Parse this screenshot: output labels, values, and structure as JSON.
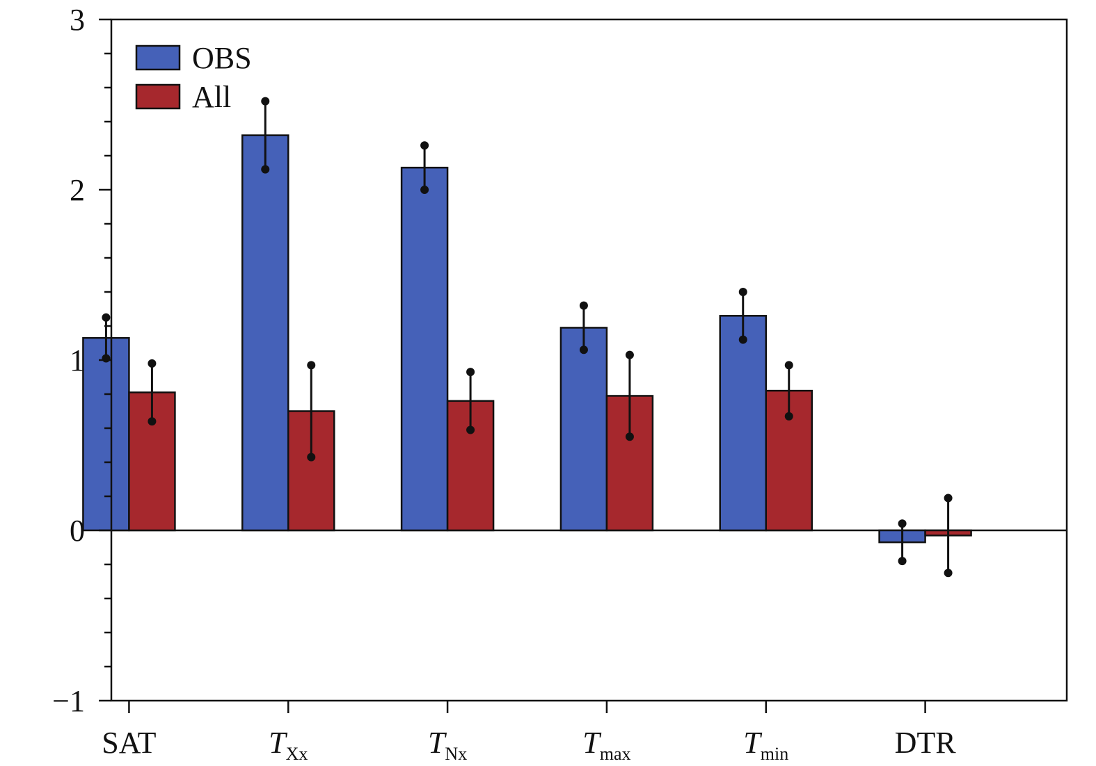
{
  "chart_data": {
    "type": "bar",
    "title": "",
    "xlabel": "",
    "ylabel": "",
    "ylim": [
      -1,
      3
    ],
    "y_major_ticks": [
      -1,
      0,
      1,
      2,
      3
    ],
    "y_tick_labels": [
      "−1",
      "0",
      "1",
      "2",
      "3"
    ],
    "y_minor_step": 0.2,
    "grid": false,
    "legend_position": "top-left",
    "categories": [
      {
        "id": "SAT",
        "main": "SAT",
        "sub": "",
        "italic": false
      },
      {
        "id": "TXx",
        "main": "T",
        "sub": "Xx",
        "italic": true
      },
      {
        "id": "TNx",
        "main": "T",
        "sub": "Nx",
        "italic": true
      },
      {
        "id": "Tmax",
        "main": "T",
        "sub": "max",
        "italic": true
      },
      {
        "id": "Tmin",
        "main": "T",
        "sub": "min",
        "italic": true
      },
      {
        "id": "DTR",
        "main": "DTR",
        "sub": "",
        "italic": false
      }
    ],
    "series": [
      {
        "name": "OBS",
        "color": "#4561b8",
        "values": [
          1.13,
          2.32,
          2.13,
          1.19,
          1.26,
          -0.07
        ],
        "err_low": [
          1.01,
          2.12,
          2.0,
          1.06,
          1.12,
          -0.18
        ],
        "err_high": [
          1.25,
          2.52,
          2.26,
          1.32,
          1.4,
          0.04
        ]
      },
      {
        "name": "All",
        "color": "#a6282d",
        "values": [
          0.81,
          0.7,
          0.76,
          0.79,
          0.82,
          -0.03
        ],
        "err_low": [
          0.64,
          0.43,
          0.59,
          0.55,
          0.67,
          -0.25
        ],
        "err_high": [
          0.98,
          0.97,
          0.93,
          1.03,
          0.97,
          0.19
        ]
      }
    ]
  }
}
